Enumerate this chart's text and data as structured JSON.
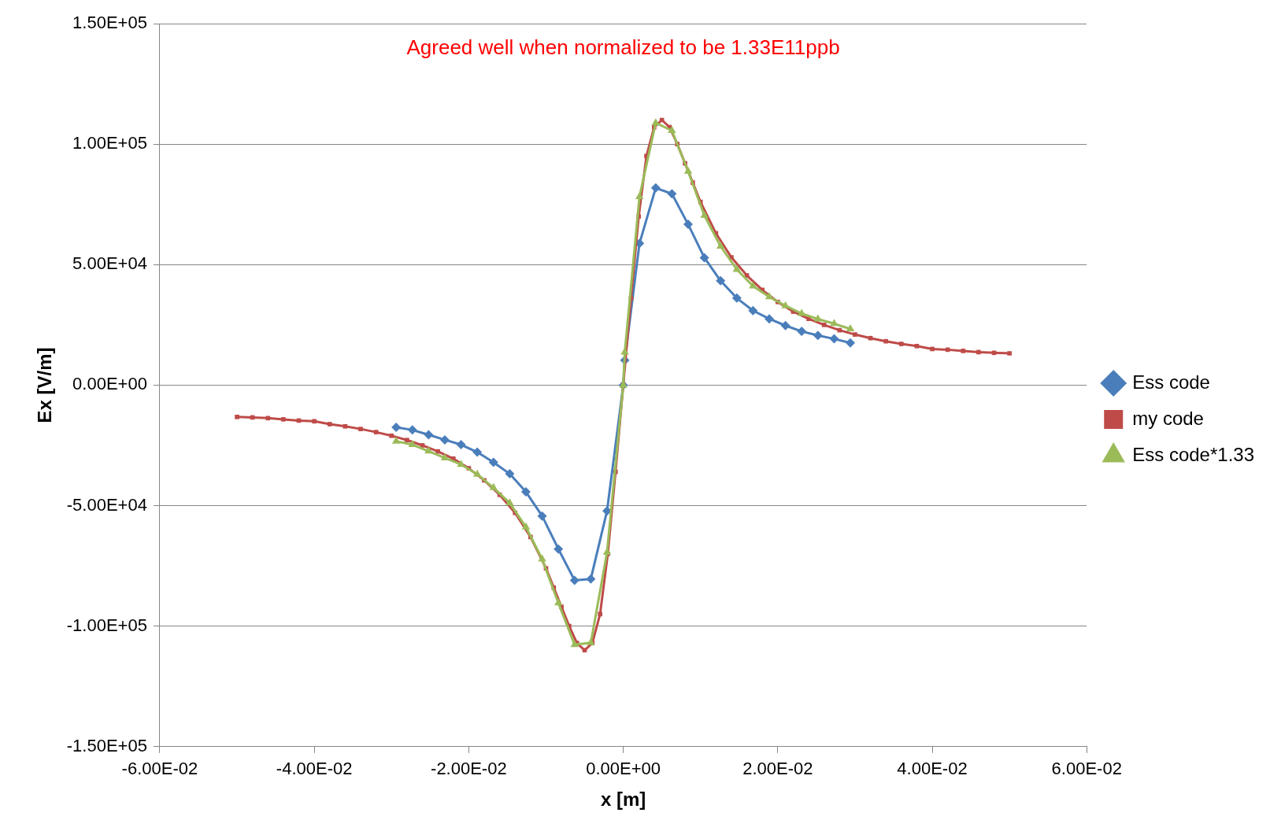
{
  "chart_data": {
    "type": "line",
    "xlabel": "x [m]",
    "ylabel": "Ex [V/m]",
    "annotations": [
      "Agreed well when normalized to be 1.33E11ppb"
    ],
    "xlim": [
      -0.06,
      0.06
    ],
    "xticks": [
      {
        "value": -0.06,
        "label": "-6.00E-02"
      },
      {
        "value": -0.04,
        "label": "-4.00E-02"
      },
      {
        "value": -0.02,
        "label": "-2.00E-02"
      },
      {
        "value": 0,
        "label": "0.00E+00"
      },
      {
        "value": 0.02,
        "label": "2.00E-02"
      },
      {
        "value": 0.04,
        "label": "4.00E-02"
      },
      {
        "value": 0.06,
        "label": "6.00E-02"
      }
    ],
    "ylim": [
      -150000,
      150000
    ],
    "yticks": [
      {
        "value": -150000,
        "label": "-1.50E+05"
      },
      {
        "value": -100000,
        "label": "-1.00E+05"
      },
      {
        "value": -50000,
        "label": "-5.00E+04"
      },
      {
        "value": 0,
        "label": "0.00E+00"
      },
      {
        "value": 50000,
        "label": "5.00E+04"
      },
      {
        "value": 100000,
        "label": "1.00E+05"
      },
      {
        "value": 150000,
        "label": "1.50E+05"
      }
    ],
    "grid": "y",
    "legend": "right",
    "series": [
      {
        "name": "Ess code",
        "color": "#4a7ebb",
        "marker": "diamond",
        "x": [
          -0.0294,
          -0.0273,
          -0.0252,
          -0.0231,
          -0.021,
          -0.0189,
          -0.0168,
          -0.0147,
          -0.0126,
          -0.0105,
          -0.0084,
          -0.0063,
          -0.0042,
          -0.0021,
          0,
          0.0002,
          0.0021,
          0.0042,
          0.0063,
          0.0084,
          0.0105,
          0.0126,
          0.0147,
          0.0168,
          0.0189,
          0.021,
          0.0231,
          0.0252,
          0.0273,
          0.0294
        ],
        "values": [
          -17500,
          -18600,
          -20600,
          -22700,
          -24700,
          -27800,
          -32000,
          -36800,
          -44300,
          -54300,
          -68000,
          -81000,
          -80400,
          -52200,
          0,
          10300,
          58800,
          81800,
          79400,
          66700,
          52900,
          43300,
          36100,
          30900,
          27500,
          24700,
          22300,
          20600,
          19200,
          17500
        ]
      },
      {
        "name": "my code",
        "color": "#be4b48",
        "marker": "square",
        "x": [
          -0.05,
          -0.048,
          -0.046,
          -0.044,
          -0.042,
          -0.04,
          -0.038,
          -0.036,
          -0.034,
          -0.032,
          -0.03,
          -0.028,
          -0.026,
          -0.024,
          -0.022,
          -0.02,
          -0.018,
          -0.016,
          -0.014,
          -0.012,
          -0.01,
          -0.009,
          -0.008,
          -0.007,
          -0.006,
          -0.005,
          -0.004,
          -0.003,
          -0.002,
          -0.001,
          0,
          0.001,
          0.002,
          0.003,
          0.004,
          0.005,
          0.006,
          0.007,
          0.008,
          0.009,
          0.01,
          0.012,
          0.014,
          0.016,
          0.018,
          0.02,
          0.022,
          0.024,
          0.026,
          0.028,
          0.03,
          0.032,
          0.034,
          0.036,
          0.038,
          0.04,
          0.042,
          0.044,
          0.046,
          0.048,
          0.05
        ],
        "values": [
          -13200,
          -13400,
          -13700,
          -14200,
          -14700,
          -15000,
          -16200,
          -17100,
          -18200,
          -19500,
          -21000,
          -22800,
          -25000,
          -27500,
          -30500,
          -34500,
          -39500,
          -45500,
          -53000,
          -63000,
          -76000,
          -84000,
          -92000,
          -100000,
          -107000,
          -110000,
          -107000,
          -95000,
          -70000,
          -36000,
          0,
          36000,
          70000,
          95000,
          107000,
          110000,
          107000,
          100000,
          92000,
          84000,
          76000,
          63000,
          53000,
          45500,
          39500,
          34500,
          30500,
          27500,
          25000,
          22800,
          21000,
          19500,
          18200,
          17100,
          16200,
          15000,
          14700,
          14200,
          13700,
          13400,
          13200
        ]
      },
      {
        "name": "Ess code*1.33",
        "color": "#9bbb59",
        "marker": "triangle",
        "x": [
          -0.0294,
          -0.0273,
          -0.0252,
          -0.0231,
          -0.021,
          -0.0189,
          -0.0168,
          -0.0147,
          -0.0126,
          -0.0105,
          -0.0084,
          -0.0063,
          -0.0042,
          -0.0021,
          0,
          0.0002,
          0.0021,
          0.0042,
          0.0063,
          0.0084,
          0.0105,
          0.0126,
          0.0147,
          0.0168,
          0.0189,
          0.021,
          0.0231,
          0.0252,
          0.0273,
          0.0294
        ],
        "values": [
          -23300,
          -24700,
          -27400,
          -30200,
          -32900,
          -37000,
          -42600,
          -48900,
          -58900,
          -72200,
          -90400,
          -107700,
          -106900,
          -69400,
          0,
          13700,
          78200,
          108800,
          105600,
          88700,
          70400,
          57600,
          48000,
          41100,
          36600,
          32900,
          29700,
          27400,
          25500,
          23300
        ]
      }
    ]
  }
}
